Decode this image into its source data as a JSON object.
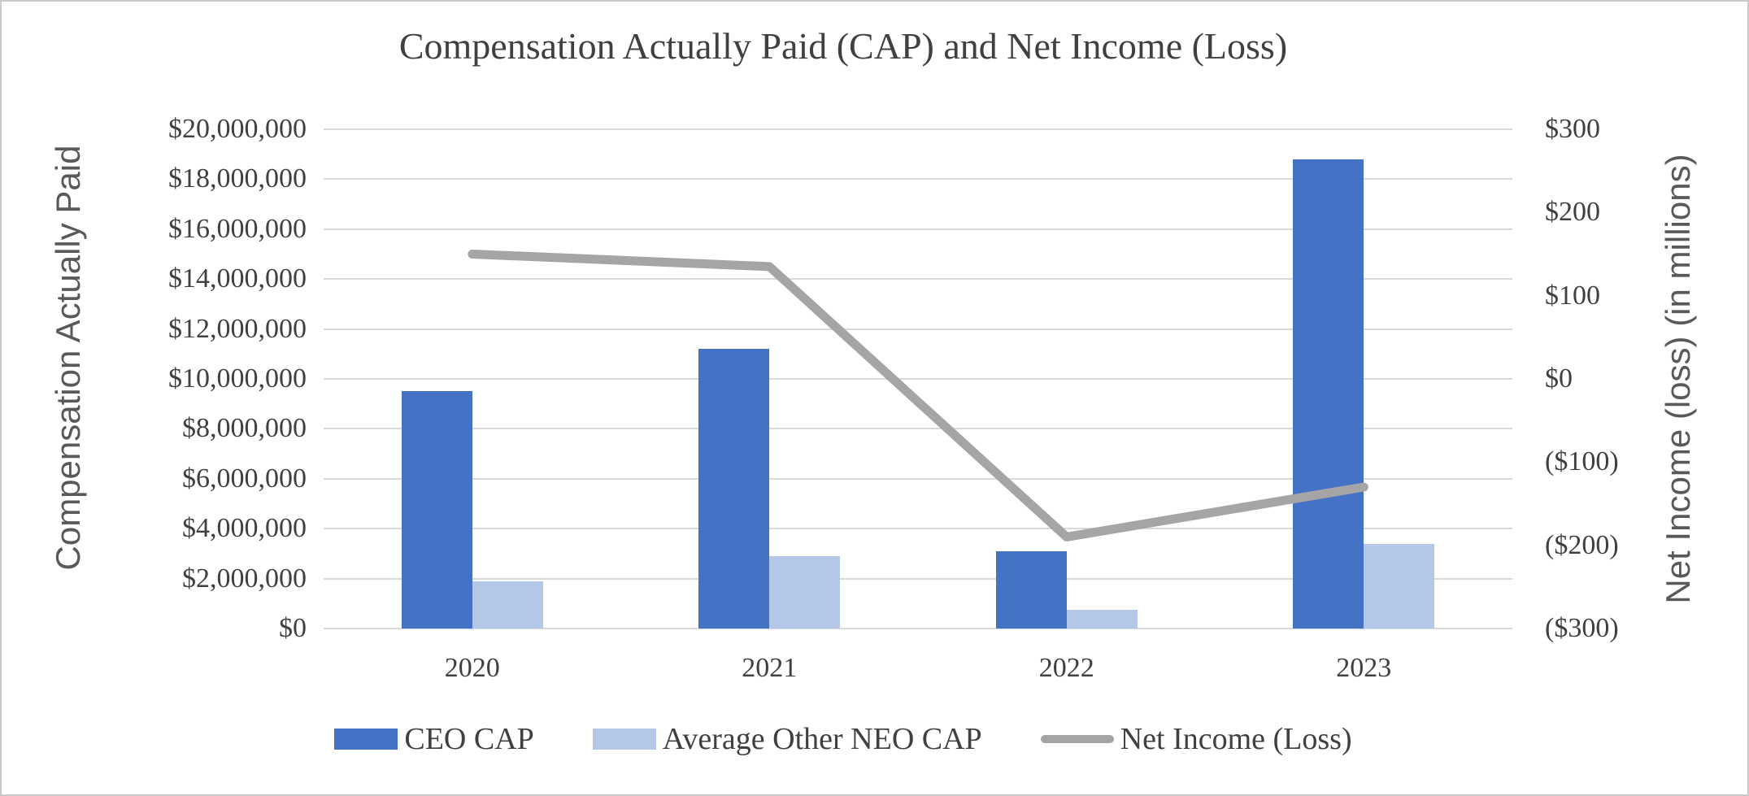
{
  "chart_data": {
    "type": "combo",
    "subtype": "clustered-bar-and-line-dual-axis",
    "title": "Compensation Actually Paid (CAP) and Net Income (Loss)",
    "categories": [
      "2020",
      "2021",
      "2022",
      "2023"
    ],
    "series": [
      {
        "name": "CEO CAP",
        "type": "bar",
        "axis": "left",
        "color": "#4472C4",
        "values": [
          9500000,
          11200000,
          3100000,
          18800000
        ]
      },
      {
        "name": "Average Other NEO CAP",
        "type": "bar",
        "axis": "left",
        "color": "#B4C7E7",
        "values": [
          1900000,
          2900000,
          750000,
          3400000
        ]
      },
      {
        "name": "Net Income (Loss)",
        "type": "line",
        "axis": "right",
        "color": "#A5A5A5",
        "values_in_millions": [
          150,
          135,
          -190,
          -130
        ]
      }
    ],
    "left_axis": {
      "title": "Compensation Actually Paid",
      "min": 0,
      "max": 20000000,
      "tick_step": 2000000,
      "tick_labels": [
        "$0",
        "$2,000,000",
        "$4,000,000",
        "$6,000,000",
        "$8,000,000",
        "$10,000,000",
        "$12,000,000",
        "$14,000,000",
        "$16,000,000",
        "$18,000,000",
        "$20,000,000"
      ]
    },
    "right_axis": {
      "title": "Net Income (loss) (in millions)",
      "min": -300,
      "max": 300,
      "tick_step": 100,
      "tick_labels": [
        "($300)",
        "($200)",
        "($100)",
        "$0",
        "$100",
        "$200",
        "$300"
      ]
    },
    "x_axis": {
      "tick_labels": [
        "2020",
        "2021",
        "2022",
        "2023"
      ]
    },
    "legend_position": "bottom",
    "grid": true,
    "colors": {
      "gridline": "#D9D9D9",
      "tick_text": "#404040",
      "axis_title_text": "#595959",
      "frame_border": "#C9C9C9"
    }
  }
}
